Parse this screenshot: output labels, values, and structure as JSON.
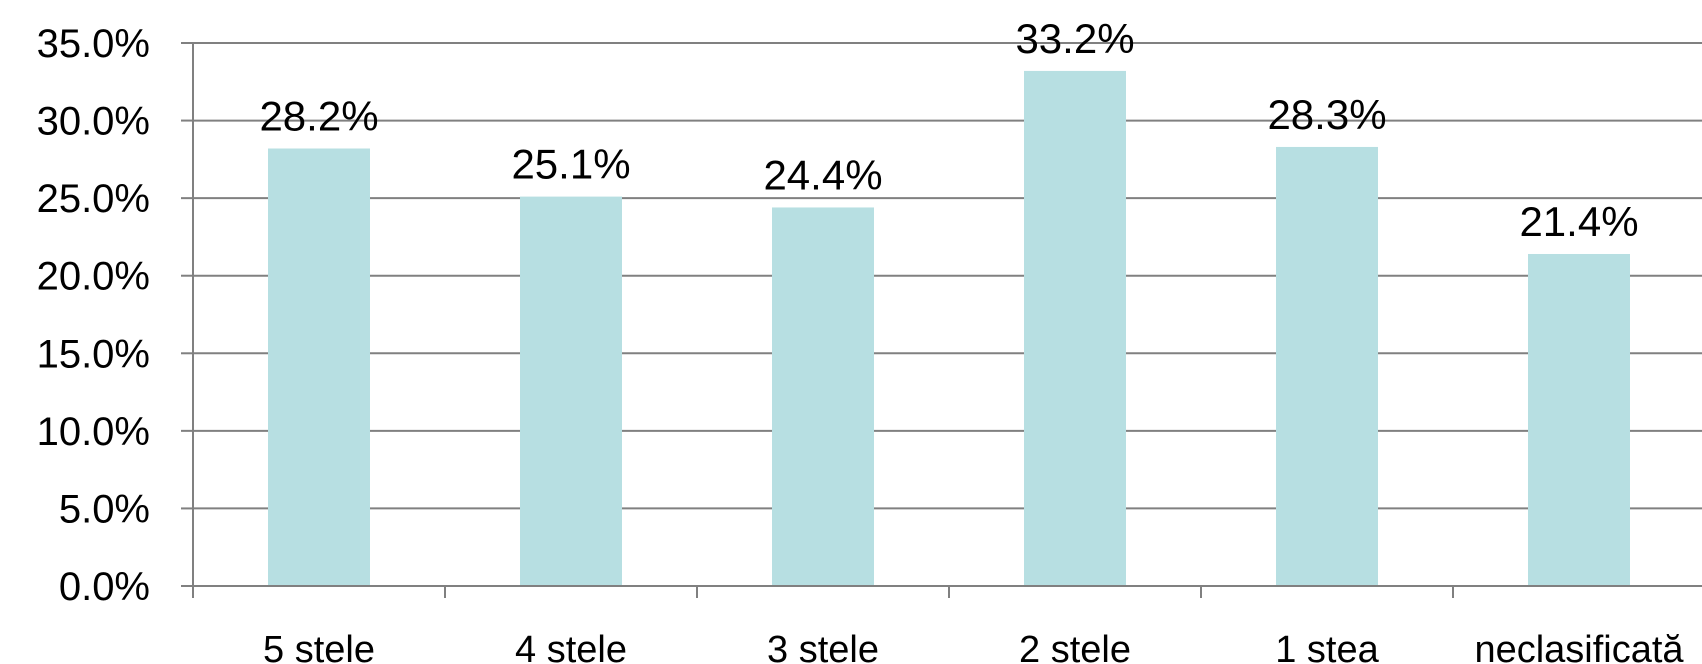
{
  "chart_data": {
    "type": "bar",
    "categories": [
      "5 stele",
      "4 stele",
      "3 stele",
      "2 stele",
      "1 stea",
      "neclasificată"
    ],
    "values": [
      28.2,
      25.1,
      24.4,
      33.2,
      28.3,
      21.4
    ],
    "data_labels": [
      "28.2%",
      "25.1%",
      "24.4%",
      "33.2%",
      "28.3%",
      "21.4%"
    ],
    "yticks": [
      "0.0%",
      "5.0%",
      "10.0%",
      "15.0%",
      "20.0%",
      "25.0%",
      "30.0%",
      "35.0%"
    ],
    "ylim": [
      0,
      35
    ],
    "grid": true,
    "legend": "none",
    "colors": {
      "bar": "#b7dfe2",
      "grid": "#808080",
      "axis": "#808080"
    }
  }
}
